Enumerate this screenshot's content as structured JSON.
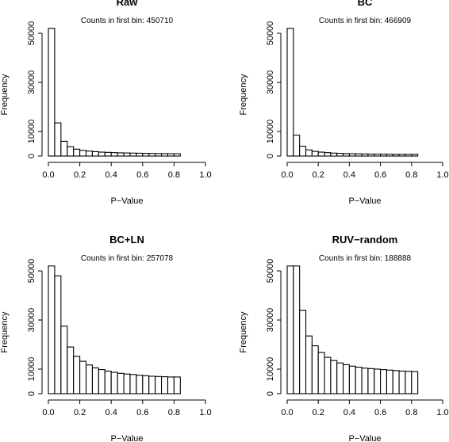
{
  "chart_data": [
    {
      "type": "bar",
      "title": "Raw",
      "annotation": "Counts in first bin: 450710",
      "first_bin_count": 450710,
      "xlabel": "P−Value",
      "ylabel": "Frequency",
      "xlim": [
        0,
        1
      ],
      "ylim": [
        0,
        52000
      ],
      "xticks": [
        "0.0",
        "0.2",
        "0.4",
        "0.6",
        "0.8",
        "1.0"
      ],
      "yticks": [
        "0",
        "10000",
        "30000",
        "50000"
      ],
      "bin_width": 0.04,
      "values": [
        450710,
        13500,
        6000,
        3800,
        2800,
        2300,
        2000,
        1800,
        1600,
        1500,
        1400,
        1300,
        1250,
        1200,
        1150,
        1100,
        1050,
        1000,
        1000,
        950,
        950
      ]
    },
    {
      "type": "bar",
      "title": "BC",
      "annotation": "Counts in first bin: 466909",
      "first_bin_count": 466909,
      "xlabel": "P−Value",
      "ylabel": "Frequency",
      "xlim": [
        0,
        1
      ],
      "ylim": [
        0,
        52000
      ],
      "xticks": [
        "0.0",
        "0.2",
        "0.4",
        "0.6",
        "0.8",
        "1.0"
      ],
      "yticks": [
        "0",
        "10000",
        "30000",
        "50000"
      ],
      "bin_width": 0.04,
      "values": [
        466909,
        8500,
        4000,
        2500,
        1900,
        1600,
        1400,
        1200,
        1100,
        1000,
        950,
        900,
        850,
        800,
        800,
        750,
        750,
        700,
        700,
        700,
        700
      ]
    },
    {
      "type": "bar",
      "title": "BC+LN",
      "annotation": "Counts in first bin: 257078",
      "first_bin_count": 257078,
      "xlabel": "P−Value",
      "ylabel": "Frequency",
      "xlim": [
        0,
        1
      ],
      "ylim": [
        0,
        52000
      ],
      "xticks": [
        "0.0",
        "0.2",
        "0.4",
        "0.6",
        "0.8",
        "1.0"
      ],
      "yticks": [
        "0",
        "10000",
        "30000",
        "50000"
      ],
      "bin_width": 0.04,
      "values": [
        257078,
        48000,
        27500,
        19000,
        15200,
        13200,
        11700,
        10500,
        9800,
        9200,
        8700,
        8300,
        8000,
        7800,
        7500,
        7300,
        7100,
        7000,
        6900,
        6800,
        6800
      ]
    },
    {
      "type": "bar",
      "title": "RUV−random",
      "annotation": "Counts in first bin: 188888",
      "first_bin_count": 188888,
      "xlabel": "P−Value",
      "ylabel": "Frequency",
      "xlim": [
        0,
        1
      ],
      "ylim": [
        0,
        52000
      ],
      "xticks": [
        "0.0",
        "0.2",
        "0.4",
        "0.6",
        "0.8",
        "1.0"
      ],
      "yticks": [
        "0",
        "10000",
        "30000",
        "50000"
      ],
      "bin_width": 0.04,
      "values": [
        188888,
        52000,
        34000,
        23500,
        19500,
        16800,
        14800,
        13500,
        12500,
        11800,
        11200,
        10800,
        10400,
        10200,
        10000,
        9800,
        9600,
        9400,
        9200,
        9100,
        9000
      ]
    }
  ]
}
